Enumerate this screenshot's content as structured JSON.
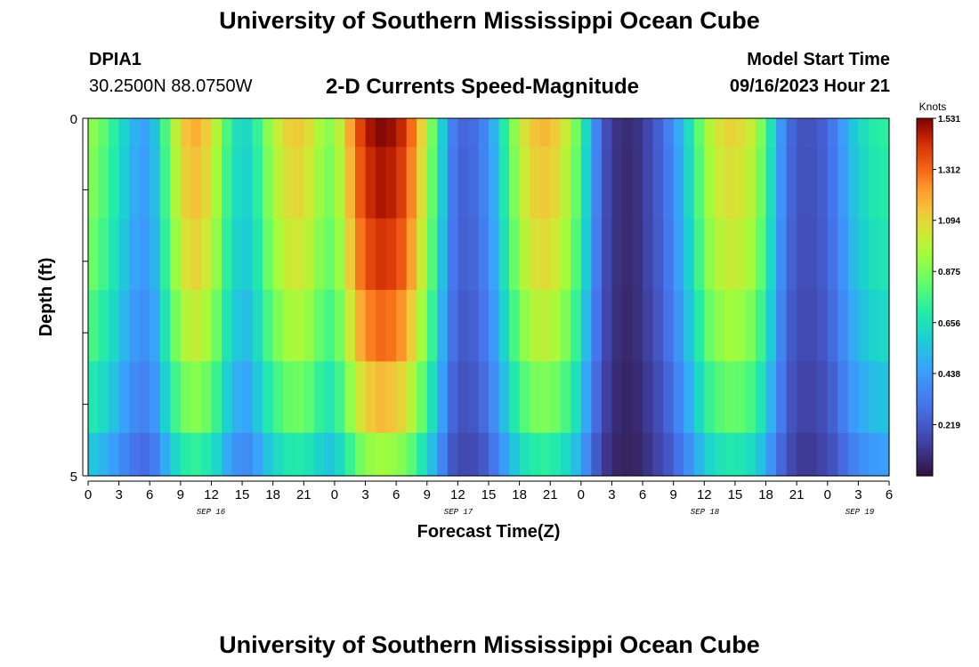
{
  "header": {
    "title": "University of Southern Mississippi Ocean Cube",
    "station_id": "DPIA1",
    "coords": "30.2500N  88.0750W",
    "subtitle": "2-D Currents Speed-Magnitude",
    "start_label": "Model Start Time",
    "start_value": "09/16/2023 Hour 21"
  },
  "footer": {
    "title": "University of Southern Mississippi Ocean Cube"
  },
  "chart_data": {
    "type": "heatmap",
    "title": "2-D Currents Speed-Magnitude",
    "xlabel": "Forecast Time(Z)",
    "ylabel": "Depth (ft)",
    "ylim": [
      0,
      5
    ],
    "y_ticks": [
      "0",
      "5"
    ],
    "x_tick_labels": [
      "0",
      "3",
      "6",
      "9",
      "12",
      "15",
      "18",
      "21",
      "0",
      "3",
      "6",
      "9",
      "12",
      "15",
      "18",
      "21",
      "0",
      "3",
      "6",
      "9",
      "12",
      "15",
      "18",
      "21",
      "0",
      "3",
      "6"
    ],
    "date_labels": [
      "SEP 16",
      "SEP 17",
      "SEP 18",
      "SEP 19"
    ],
    "colorbar": {
      "unit": "Knots",
      "ticks": [
        "1.531",
        "1.312",
        "1.094",
        "0.875",
        "0.656",
        "0.438",
        "0.219"
      ],
      "range": [
        0,
        1.531
      ]
    },
    "time_hours": [
      0,
      1,
      2,
      3,
      4,
      5,
      6,
      7,
      8,
      9,
      10,
      11,
      12,
      13,
      14,
      15,
      16,
      17,
      18,
      19,
      20,
      21,
      22,
      23,
      24,
      25,
      26,
      27,
      28,
      29,
      30,
      31,
      32,
      33,
      34,
      35,
      36,
      37,
      38,
      39,
      40,
      41,
      42,
      43,
      44,
      45,
      46,
      47,
      48,
      49,
      50,
      51,
      52,
      53,
      54,
      55,
      56,
      57,
      58,
      59,
      60,
      61,
      62,
      63,
      64,
      65,
      66,
      67,
      68,
      69,
      70,
      71,
      72,
      73,
      74,
      75,
      76,
      77,
      78
    ],
    "depth_levels_ft": [
      0.0,
      0.4,
      1.4,
      2.4,
      3.4,
      4.4
    ],
    "surface_speed_knots": [
      0.9,
      0.82,
      0.72,
      0.6,
      0.5,
      0.46,
      0.55,
      0.78,
      1.0,
      1.14,
      1.18,
      1.12,
      0.98,
      0.78,
      0.65,
      0.62,
      0.74,
      0.9,
      1.02,
      1.1,
      1.12,
      1.07,
      0.96,
      0.9,
      1.0,
      1.2,
      1.38,
      1.48,
      1.52,
      1.5,
      1.44,
      1.3,
      1.1,
      0.86,
      0.58,
      0.34,
      0.26,
      0.28,
      0.36,
      0.5,
      0.7,
      0.9,
      1.06,
      1.14,
      1.16,
      1.12,
      1.02,
      0.86,
      0.62,
      0.36,
      0.18,
      0.1,
      0.08,
      0.1,
      0.16,
      0.24,
      0.34,
      0.48,
      0.64,
      0.82,
      0.98,
      1.06,
      1.1,
      1.08,
      1.02,
      0.88,
      0.66,
      0.42,
      0.26,
      0.2,
      0.2,
      0.24,
      0.32,
      0.44,
      0.56,
      0.64,
      0.7,
      0.72,
      0.7
    ],
    "depth_factors": [
      1.0,
      0.97,
      0.93,
      0.86,
      0.76,
      0.62
    ]
  }
}
